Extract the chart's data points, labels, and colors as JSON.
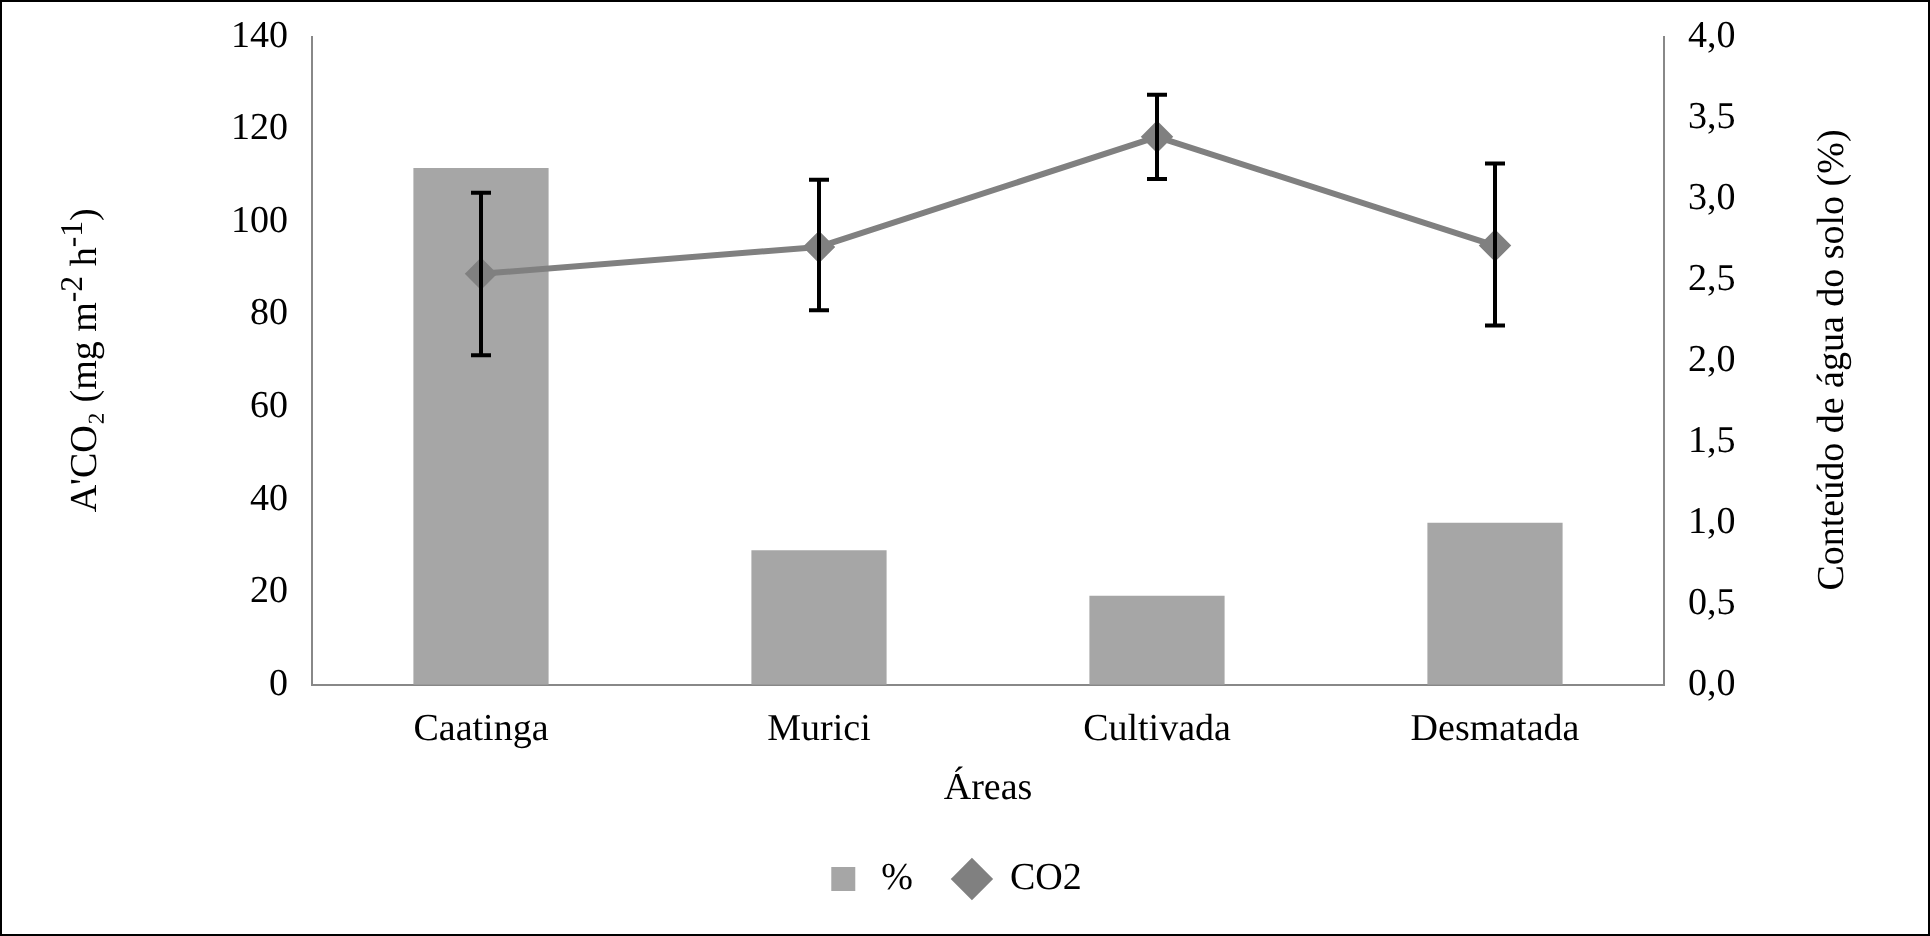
{
  "chart_data": {
    "type": "bar",
    "xlabel": "Áreas",
    "ylabel": "A'CO₂ (mg m$^{-2}$ h$^{-1}$)",
    "y2label": "Conteúdo de água do solo (%)",
    "categories": [
      "Caatinga",
      "Murici",
      "Cultivada",
      "Desmatada"
    ],
    "series": [
      {
        "name": "%",
        "axis": "y2",
        "color": "#a6a6a6",
        "values": [
          3.19,
          0.83,
          0.55,
          1.0
        ]
      },
      {
        "name": "CO2",
        "type": "line",
        "axis": "y",
        "color": "#808080",
        "marker": "diamond",
        "values": [
          88.8,
          94.6,
          118.4,
          94.9
        ],
        "errors": [
          [
            71.2,
            106.3
          ],
          [
            80.9,
            109.1
          ],
          [
            109.3,
            127.5
          ],
          [
            77.6,
            112.6
          ]
        ]
      }
    ],
    "ylim": [
      0,
      140
    ],
    "yticks": [
      0,
      20,
      40,
      60,
      80,
      100,
      120,
      140
    ],
    "y2lim": [
      0,
      4
    ],
    "y2ticks": [
      {
        "value": 0,
        "label": "0,0"
      },
      {
        "value": 0.5,
        "label": "0,5"
      },
      {
        "value": 1,
        "label": "1,0"
      },
      {
        "value": 1.5,
        "label": "1,5"
      },
      {
        "value": 2,
        "label": "2,0"
      },
      {
        "value": 2.5,
        "label": "2,5"
      },
      {
        "value": 3,
        "label": "3,0"
      },
      {
        "value": 3.5,
        "label": "3,5"
      },
      {
        "value": 4,
        "label": "4,0"
      }
    ],
    "grid": false,
    "legend": "bottom"
  }
}
